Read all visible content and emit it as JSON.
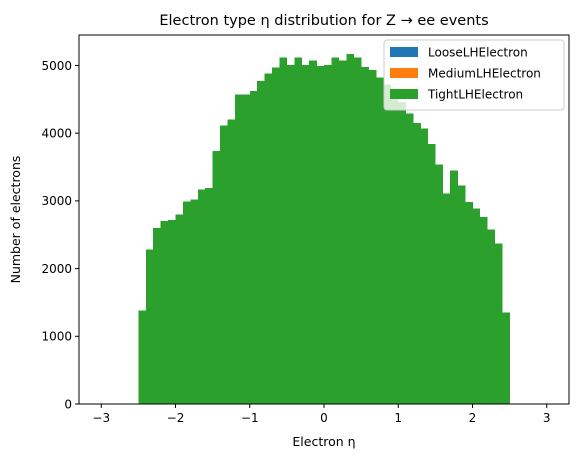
{
  "chart_data": {
    "type": "bar",
    "title": "Electron type η distribution for Z → ee events",
    "xlabel": "Electron η",
    "ylabel": "Number of electrons",
    "xlim": [
      -3.3,
      3.3
    ],
    "ylim": [
      0,
      5450
    ],
    "xticks": [
      -3,
      -2,
      -1,
      0,
      1,
      2,
      3
    ],
    "xtick_labels": [
      "−3",
      "−2",
      "−1",
      "0",
      "1",
      "2",
      "3"
    ],
    "yticks": [
      0,
      1000,
      2000,
      3000,
      4000,
      5000
    ],
    "ytick_labels": [
      "0",
      "1000",
      "2000",
      "3000",
      "4000",
      "5000"
    ],
    "grid": false,
    "legend_position": "top-right",
    "bin_edges": [
      -2.5,
      -2.4,
      -2.3,
      -2.2,
      -2.1,
      -2.0,
      -1.9,
      -1.8,
      -1.7,
      -1.6,
      -1.5,
      -1.4,
      -1.3,
      -1.2,
      -1.1,
      -1.0,
      -0.9,
      -0.8,
      -0.7,
      -0.6,
      -0.5,
      -0.4,
      -0.3,
      -0.2,
      -0.1,
      0.0,
      0.1,
      0.2,
      0.3,
      0.4,
      0.5,
      0.6,
      0.7,
      0.8,
      0.9,
      1.0,
      1.1,
      1.2,
      1.3,
      1.4,
      1.5,
      1.6,
      1.7,
      1.8,
      1.9,
      2.0,
      2.1,
      2.2,
      2.3,
      2.4,
      2.5
    ],
    "series": [
      {
        "name": "LooseLHElectron",
        "color": "#1f77b4",
        "values": [
          1380,
          2280,
          2600,
          2700,
          2720,
          2800,
          2990,
          3020,
          3170,
          3190,
          3740,
          4110,
          4200,
          4570,
          4570,
          4620,
          4770,
          4880,
          4970,
          5120,
          5010,
          5120,
          5010,
          5070,
          4990,
          5010,
          5120,
          5070,
          5170,
          5120,
          4980,
          4930,
          4820,
          4720,
          4610,
          4460,
          4290,
          4150,
          4070,
          3840,
          3540,
          3110,
          3450,
          3230,
          2980,
          2890,
          2760,
          2580,
          2370,
          1350
        ]
      },
      {
        "name": "MediumLHElectron",
        "color": "#ff7f0e",
        "values": [
          1380,
          2280,
          2600,
          2700,
          2720,
          2800,
          2990,
          3020,
          3170,
          3190,
          3740,
          4110,
          4200,
          4570,
          4570,
          4620,
          4770,
          4880,
          4970,
          5120,
          5010,
          5120,
          5010,
          5070,
          4990,
          5010,
          5120,
          5070,
          5170,
          5120,
          4980,
          4930,
          4820,
          4720,
          4610,
          4460,
          4290,
          4150,
          4070,
          3840,
          3540,
          3110,
          3450,
          3230,
          2980,
          2890,
          2760,
          2580,
          2370,
          1350
        ]
      },
      {
        "name": "TightLHElectron",
        "color": "#2ca02c",
        "values": [
          1380,
          2280,
          2600,
          2700,
          2720,
          2800,
          2990,
          3020,
          3170,
          3190,
          3740,
          4110,
          4200,
          4570,
          4570,
          4620,
          4770,
          4880,
          4970,
          5120,
          5010,
          5120,
          5010,
          5070,
          4990,
          5010,
          5120,
          5070,
          5170,
          5120,
          4980,
          4930,
          4820,
          4720,
          4610,
          4460,
          4290,
          4150,
          4070,
          3840,
          3540,
          3110,
          3450,
          3230,
          2980,
          2890,
          2760,
          2580,
          2370,
          1350
        ]
      }
    ]
  }
}
